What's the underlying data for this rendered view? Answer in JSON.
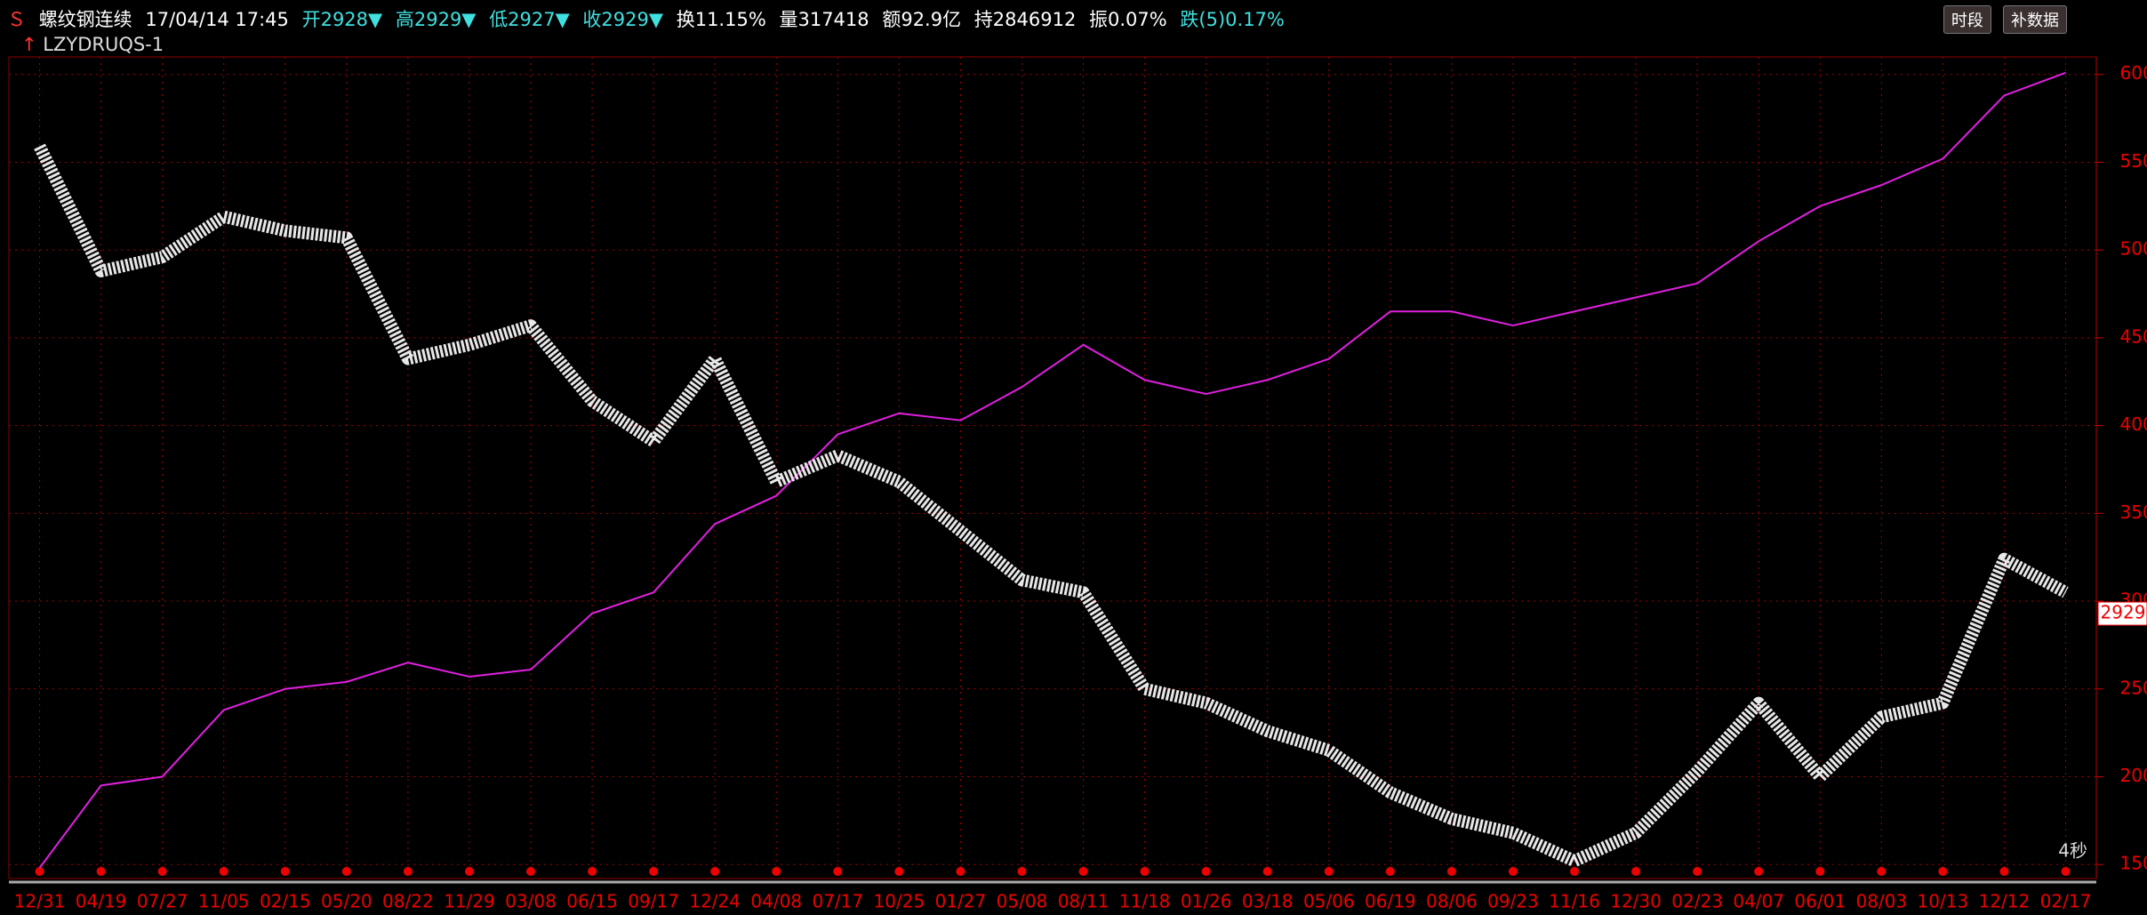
{
  "header": {
    "name": "螺纹钢连续",
    "time": "17/04/14 17:45",
    "open": "开2928▼",
    "high": "高2929▼",
    "low": "低2927▼",
    "close": "收2929▼",
    "turnover": "换11.15%",
    "volume": "量317418",
    "amount": "额92.9亿",
    "hold": "持2846912",
    "amplitude": "振0.07%",
    "change": "跌(5)0.17%",
    "buttons": [
      "时段",
      "补数据"
    ],
    "indicator": "LZYDRUQS-1",
    "refresh": "4秒"
  },
  "chart_data": {
    "type": "line",
    "categories": [
      "12/31",
      "04/19",
      "07/27",
      "11/05",
      "02/15",
      "05/20",
      "08/22",
      "11/29",
      "03/08",
      "06/15",
      "09/17",
      "12/24",
      "04/08",
      "07/17",
      "10/25",
      "01/27",
      "05/08",
      "08/11",
      "11/18",
      "01/26",
      "03/18",
      "05/06",
      "06/19",
      "08/06",
      "09/23",
      "11/16",
      "12/30",
      "02/23",
      "04/07",
      "06/01",
      "08/03",
      "10/13",
      "12/12",
      "02/17"
    ],
    "series": [
      {
        "name": "LZYDRUQS-1",
        "color": "#e020e0",
        "values": [
          1480,
          1950,
          2000,
          2380,
          2500,
          2540,
          2650,
          2570,
          2610,
          2930,
          3050,
          3440,
          3600,
          3950,
          4070,
          4030,
          4220,
          4460,
          4260,
          4180,
          4260,
          4380,
          4650,
          4650,
          4570,
          4650,
          4730,
          4810,
          5050,
          5250,
          5370,
          5520,
          5880,
          6010
        ]
      },
      {
        "name": "螺纹钢连续",
        "color": "#e8e8e8",
        "values": [
          5590,
          4880,
          4960,
          5190,
          5110,
          5070,
          4380,
          4460,
          4570,
          4140,
          3910,
          4380,
          3680,
          3830,
          3680,
          3400,
          3120,
          3050,
          2500,
          2420,
          2260,
          2150,
          1910,
          1760,
          1680,
          1520,
          1680,
          2030,
          2420,
          2000,
          2340,
          2420,
          3240,
          3050
        ]
      }
    ],
    "last_price": 2929,
    "ylim": [
      1420,
      6100
    ],
    "yticks": [
      1500,
      2000,
      2500,
      3000,
      3500,
      4000,
      4500,
      5000,
      5500,
      6000
    ],
    "grid": true
  }
}
